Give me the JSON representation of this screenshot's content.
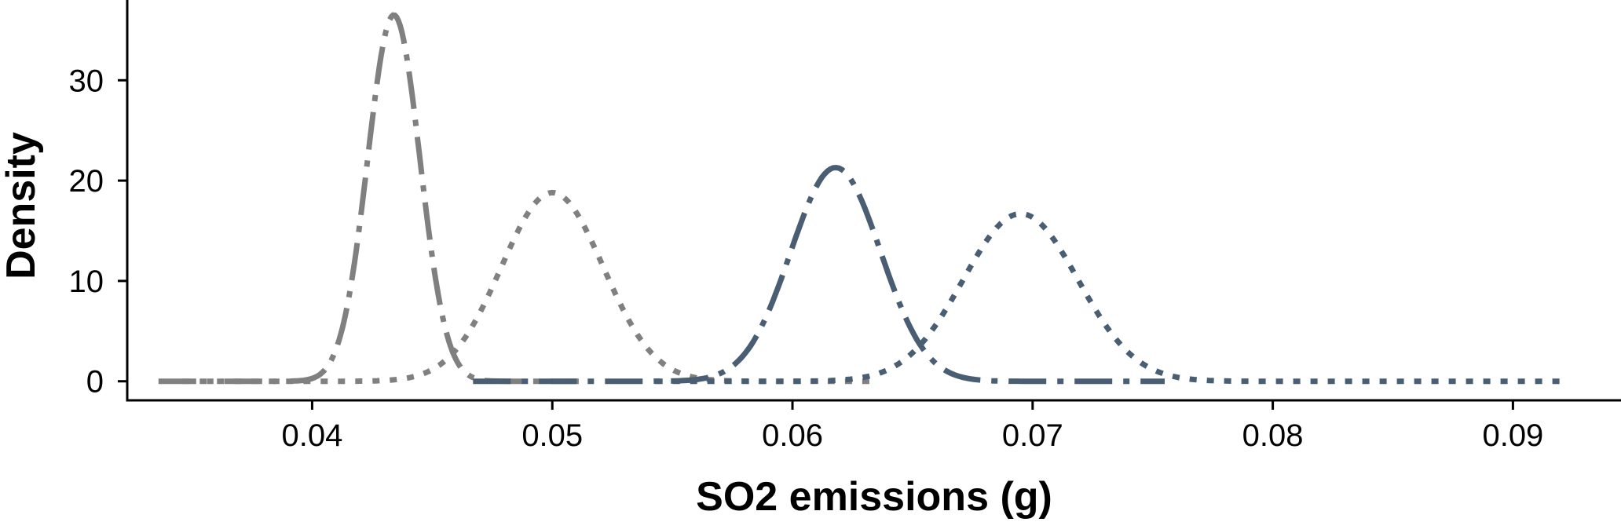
{
  "chart_data": {
    "type": "line",
    "title": "",
    "xlabel": "SO2 emissions (g)",
    "ylabel": "Density",
    "xlim": [
      0.0323,
      0.0945
    ],
    "ylim": [
      -1.9,
      38.0
    ],
    "xticks": [
      0.04,
      0.05,
      0.06,
      0.07,
      0.08,
      0.09
    ],
    "xtick_labels": [
      "0.04",
      "0.05",
      "0.06",
      "0.07",
      "0.08",
      "0.09"
    ],
    "yticks": [
      0,
      10,
      20,
      30
    ],
    "ytick_labels": [
      "0",
      "10",
      "20",
      "30"
    ],
    "grid": false,
    "legend": "none",
    "series": [
      {
        "style": "dashdot",
        "color": "#808080",
        "x_range": [
          0.0336,
          0.0511
        ],
        "peak_x": 0.0434,
        "peak_y": 36.5,
        "sigma": 0.00109
      },
      {
        "style": "dotted",
        "color": "#808080",
        "x_range": [
          0.0346,
          0.0632
        ],
        "peak_x": 0.05,
        "peak_y": 18.8,
        "sigma": 0.00212
      },
      {
        "style": "dashdot",
        "color": "#4a5e73",
        "x_range": [
          0.0467,
          0.0755
        ],
        "peak_x": 0.0618,
        "peak_y": 21.3,
        "sigma": 0.00187
      },
      {
        "style": "dotted",
        "color": "#4a5e73",
        "x_range": [
          0.0543,
          0.0922
        ],
        "peak_x": 0.0695,
        "peak_y": 16.7,
        "sigma": 0.00239
      }
    ]
  }
}
